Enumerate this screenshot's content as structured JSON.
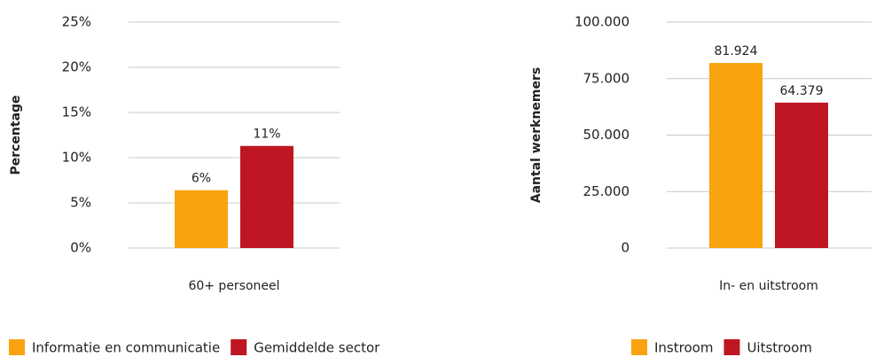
{
  "chart_data": [
    {
      "type": "bar",
      "y_axis_label": "Percentage",
      "categories": [
        "60+ personeel"
      ],
      "series": [
        {
          "name": "Informatie en communicatie",
          "color": "#f9a30e",
          "values": [
            6.4
          ],
          "value_labels": [
            "6%"
          ]
        },
        {
          "name": "Gemiddelde sector",
          "color": "#be1622",
          "values": [
            11.3
          ],
          "value_labels": [
            "11%"
          ]
        }
      ],
      "ylim": [
        0,
        25
      ],
      "yticks": [
        {
          "value": 0,
          "label": "0%"
        },
        {
          "value": 5,
          "label": "5%"
        },
        {
          "value": 10,
          "label": "10%"
        },
        {
          "value": 15,
          "label": "15%"
        },
        {
          "value": 20,
          "label": "20%"
        },
        {
          "value": 25,
          "label": "25%"
        }
      ],
      "grid": true,
      "legend": "bottom-left"
    },
    {
      "type": "bar",
      "y_axis_label": "Aantal werknemers",
      "categories": [
        "In- en uitstroom"
      ],
      "series": [
        {
          "name": "Instroom",
          "color": "#f9a30e",
          "values": [
            81924
          ],
          "value_labels": [
            "81.924"
          ]
        },
        {
          "name": "Uitstroom",
          "color": "#be1622",
          "values": [
            64379
          ],
          "value_labels": [
            "64.379"
          ]
        }
      ],
      "ylim": [
        0,
        100000
      ],
      "yticks": [
        0,
        {
          "value": 25000,
          "label": "25.000"
        },
        {
          "value": 50000,
          "label": "50.000"
        },
        {
          "value": 75000,
          "label": "75.000"
        },
        {
          "value": 100000,
          "label": "100.000"
        }
      ],
      "grid": true,
      "legend": "bottom-right"
    }
  ]
}
